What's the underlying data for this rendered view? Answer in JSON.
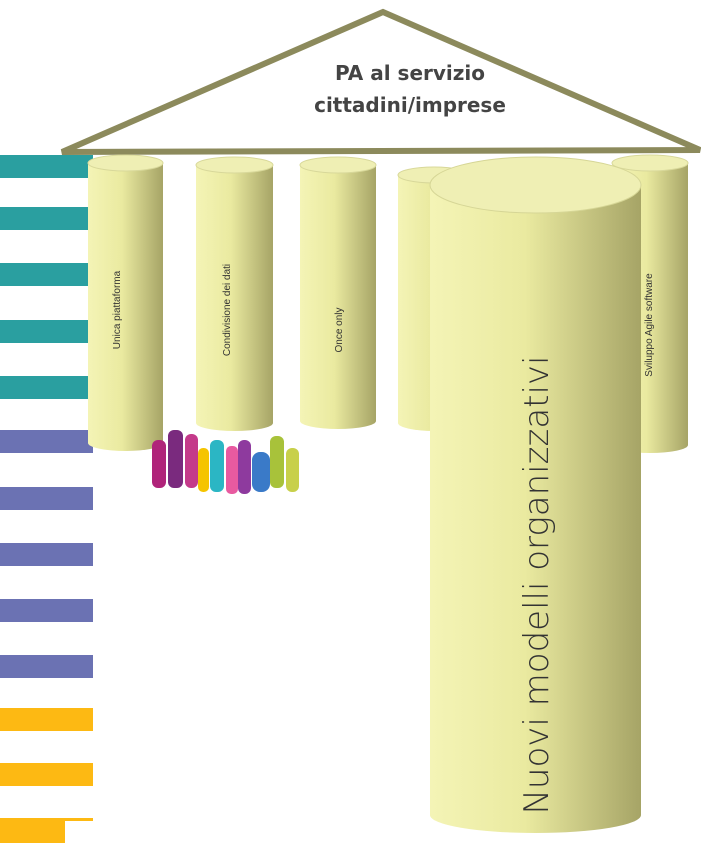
{
  "roof": {
    "title_lines": [
      "PA al servizio",
      "cittadini/imprese"
    ]
  },
  "pillars": [
    {
      "label": "Unica piattaforma"
    },
    {
      "label": "Condivisione dei dati"
    },
    {
      "label": "Once only"
    },
    {
      "label": "Sviluppo Agile software"
    }
  ],
  "main_pillar": {
    "label": "Nuovi modelli organizzativi"
  }
}
